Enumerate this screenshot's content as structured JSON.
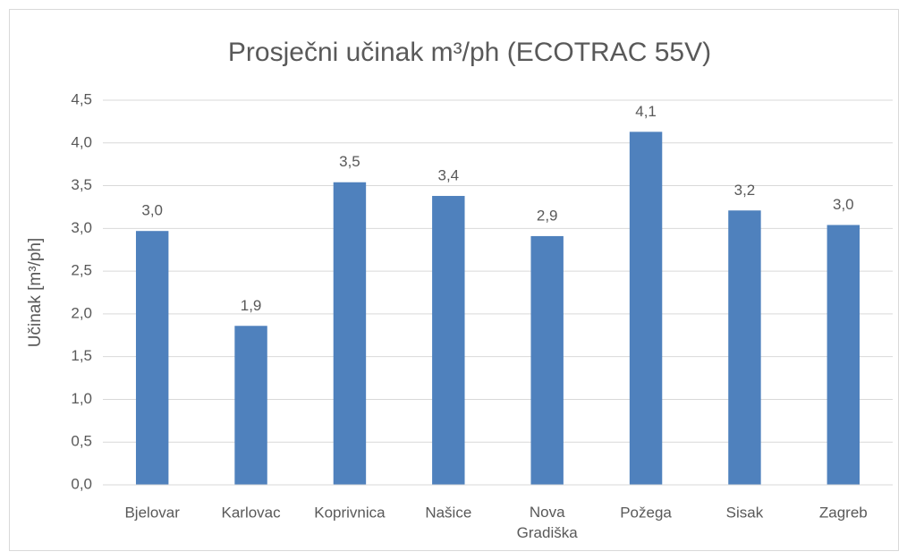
{
  "chart_data": {
    "type": "bar",
    "title": "Prosječni učinak m³/ph (ECOTRAC 55V)",
    "y_label": "Učinak [m³/ph]",
    "categories": [
      "Bjelovar",
      "Karlovac",
      "Koprivnica",
      "Našice",
      "Nova Gradiška",
      "Požega",
      "Sisak",
      "Zagreb"
    ],
    "values": [
      2.97,
      1.86,
      3.54,
      3.38,
      2.91,
      4.13,
      3.21,
      3.04
    ],
    "value_labels": [
      "3,0",
      "1,9",
      "3,5",
      "3,4",
      "2,9",
      "4,1",
      "3,2",
      "3,0"
    ],
    "color": "#4f81bd",
    "ylim": [
      0,
      4.5
    ],
    "yticks": [
      {
        "value": 0,
        "label": "0,0"
      },
      {
        "value": 0.5,
        "label": "0,5"
      },
      {
        "value": 1,
        "label": "1,0"
      },
      {
        "value": 1.5,
        "label": "1,5"
      },
      {
        "value": 2,
        "label": "2,0"
      },
      {
        "value": 2.5,
        "label": "2,5"
      },
      {
        "value": 3,
        "label": "3,0"
      },
      {
        "value": 3.5,
        "label": "3,5"
      },
      {
        "value": 4,
        "label": "4,0"
      },
      {
        "value": 4.5,
        "label": "4,5"
      }
    ],
    "grid": true
  }
}
